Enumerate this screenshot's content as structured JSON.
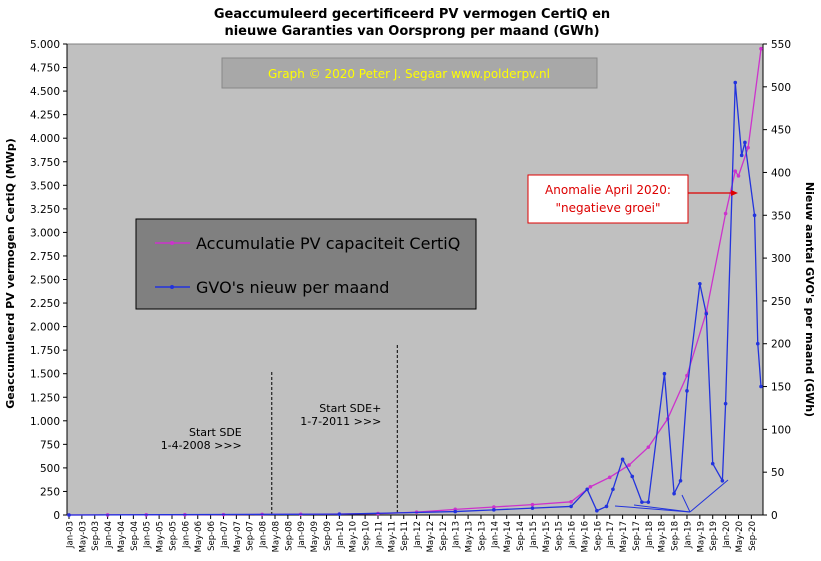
{
  "chart_data": {
    "type": "line",
    "title_lines": [
      "Geaccumuleerd gecertificeerd PV vermogen CertiQ en",
      "nieuwe Garanties van Oorsprong per maand (GWh)"
    ],
    "watermark": "Graph © 2020 Peter J. Segaar www.polderpv.nl",
    "ylabel_left": "Geaccumuleerd PV vermogen CertiQ (MWp)",
    "ylabel_right": "Nieuw aantal GVO's per maand (GWh)",
    "y_left": {
      "min": 0,
      "max": 5000,
      "ticks": [
        0,
        250,
        500,
        750,
        1000,
        1250,
        1500,
        1750,
        2000,
        2250,
        2500,
        2750,
        3000,
        3250,
        3500,
        3750,
        4000,
        4250,
        4500,
        4750,
        5000
      ],
      "tick_labels": [
        "0",
        "250",
        "500",
        "750",
        "1.000",
        "1.250",
        "1.500",
        "1.750",
        "2.000",
        "2.250",
        "2.500",
        "2.750",
        "3.000",
        "3.250",
        "3.500",
        "3.750",
        "4.000",
        "4.250",
        "4.500",
        "4.750",
        "5.000"
      ]
    },
    "y_right": {
      "min": 0,
      "max": 550,
      "ticks": [
        0,
        50,
        100,
        150,
        200,
        250,
        300,
        350,
        400,
        450,
        500,
        550
      ],
      "tick_labels": [
        "0",
        "50",
        "100",
        "150",
        "200",
        "250",
        "300",
        "350",
        "400",
        "450",
        "500",
        "550"
      ]
    },
    "x_start": "Jan-03",
    "x_end": "Dec-20",
    "x_tick_labels": [
      "Jan-03",
      "May-03",
      "Sep-03",
      "Jan-04",
      "May-04",
      "Sep-04",
      "Jan-05",
      "May-05",
      "Sep-05",
      "Jan-06",
      "May-06",
      "Sep-06",
      "Jan-07",
      "May-07",
      "Sep-07",
      "Jan-08",
      "May-08",
      "Sep-08",
      "Jan-09",
      "May-09",
      "Sep-09",
      "Jan-10",
      "May-10",
      "Sep-10",
      "Jan-11",
      "May-11",
      "Sep-11",
      "Jan-12",
      "May-12",
      "Sep-12",
      "Jan-13",
      "May-13",
      "Sep-13",
      "Jan-14",
      "May-14",
      "Sep-14",
      "Jan-15",
      "May-15",
      "Sep-15",
      "Jan-16",
      "May-16",
      "Sep-16",
      "Jan-17",
      "May-17",
      "Sep-17",
      "Jan-18",
      "May-18",
      "Sep-18",
      "Jan-19",
      "May-19",
      "Sep-19",
      "Jan-20",
      "May-20",
      "Sep-20"
    ],
    "legend": {
      "placement": "center-left",
      "items": [
        {
          "label": "Accumulatie PV capaciteit CertiQ",
          "color": "#cc33cc"
        },
        {
          "label": "GVO's nieuw per maand",
          "color": "#2233dd"
        }
      ]
    },
    "series": [
      {
        "name": "Accumulatie PV capaciteit CertiQ",
        "axis": "left",
        "color": "#cc33cc",
        "x": [
          "Jan-03",
          "Jan-04",
          "Jan-05",
          "Jan-06",
          "Jan-07",
          "Jan-08",
          "Jan-09",
          "Jan-10",
          "Jan-11",
          "Jan-12",
          "Jan-13",
          "Jan-14",
          "Jan-15",
          "Jan-16",
          "Jul-16",
          "Jan-17",
          "Jul-17",
          "Jan-18",
          "Jul-18",
          "Jan-19",
          "Jul-19",
          "Jan-20",
          "Apr-20",
          "May-20",
          "Aug-20",
          "Dec-20"
        ],
        "values": [
          0,
          1,
          2,
          3,
          4,
          6,
          8,
          10,
          15,
          30,
          60,
          85,
          110,
          140,
          300,
          400,
          530,
          720,
          1020,
          1480,
          2150,
          3200,
          3650,
          3600,
          3900,
          4950
        ]
      },
      {
        "name": "GVO's nieuw per maand",
        "axis": "right",
        "color": "#2233dd",
        "x": [
          "Jan-03",
          "Jan-10",
          "Jan-13",
          "Jan-14",
          "Jan-15",
          "Jan-16",
          "Jun-16",
          "Sep-16",
          "Dec-16",
          "Feb-17",
          "May-17",
          "Aug-17",
          "Nov-17",
          "Jan-18",
          "Jun-18",
          "Sep-18",
          "Nov-18",
          "Jan-19",
          "May-19",
          "Jul-19",
          "Sep-19",
          "Dec-19",
          "Jan-20",
          "Apr-20",
          "Jun-20",
          "Jul-20",
          "Oct-20",
          "Nov-20",
          "Dec-20"
        ],
        "values": [
          0,
          1,
          4,
          6,
          8,
          10,
          30,
          5,
          10,
          30,
          65,
          45,
          15,
          15,
          165,
          25,
          40,
          145,
          270,
          235,
          60,
          40,
          130,
          505,
          420,
          435,
          350,
          200,
          150
        ]
      }
    ],
    "annotations": [
      {
        "label_lines": [
          "Start SDE",
          "1-4-2008  >>>"
        ],
        "x": "Apr-08",
        "line": "dashed"
      },
      {
        "label_lines": [
          "Start SDE+",
          "1-7-2011  >>>"
        ],
        "x": "Jul-11",
        "line": "dashed"
      },
      {
        "label_lines": [
          "Anomalie  April 2020:",
          "\"negatieve groei\""
        ],
        "x": "Apr-20",
        "box_color": "#dd0000"
      }
    ],
    "grid": false,
    "plot_background": "#c0c0c0"
  }
}
